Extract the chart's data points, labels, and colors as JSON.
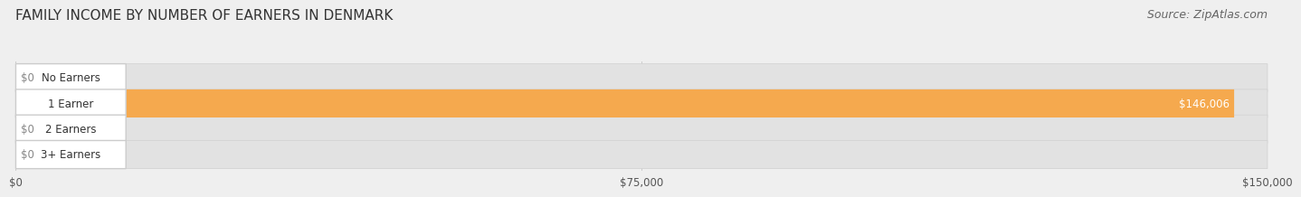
{
  "title": "FAMILY INCOME BY NUMBER OF EARNERS IN DENMARK",
  "source": "Source: ZipAtlas.com",
  "categories": [
    "No Earners",
    "1 Earner",
    "2 Earners",
    "3+ Earners"
  ],
  "values": [
    0,
    146006,
    0,
    0
  ],
  "bar_colors": [
    "#f48caa",
    "#f5a94e",
    "#f48caa",
    "#a8c4e8"
  ],
  "xlim": [
    0,
    150000
  ],
  "xticks": [
    0,
    75000,
    150000
  ],
  "xtick_labels": [
    "$0",
    "$75,000",
    "$150,000"
  ],
  "bar_height": 0.55,
  "background_color": "#efefef",
  "bar_bg_color": "#e2e2e2",
  "title_fontsize": 11,
  "source_fontsize": 9
}
